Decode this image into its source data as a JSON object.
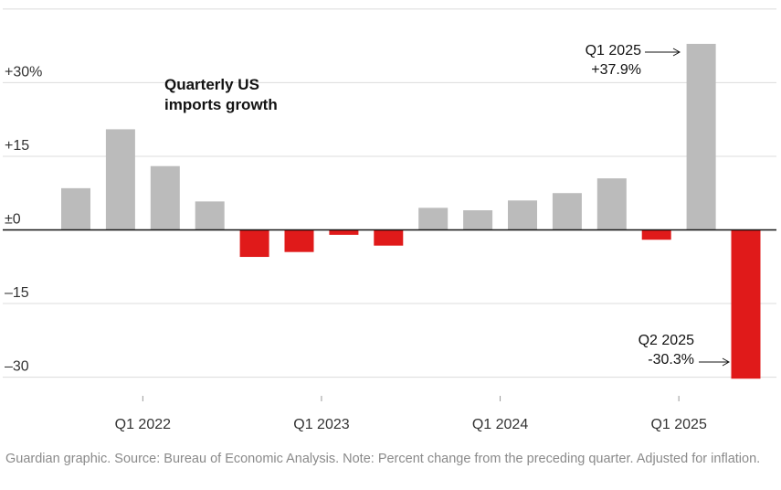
{
  "chart_data": {
    "type": "bar",
    "title": "Quarterly US imports growth",
    "ylim": [
      -30,
      45
    ],
    "grid": true,
    "y_ticks": [
      {
        "value": 30,
        "label": "+30%"
      },
      {
        "value": 15,
        "label": "+15"
      },
      {
        "value": 0,
        "label": "±0"
      },
      {
        "value": -15,
        "label": "–15"
      },
      {
        "value": -30,
        "label": "–30"
      }
    ],
    "x_ticks": [
      {
        "index": 2,
        "label": "Q1 2022"
      },
      {
        "index": 6,
        "label": "Q1 2023"
      },
      {
        "index": 10,
        "label": "Q1 2024"
      },
      {
        "index": 14,
        "label": "Q1 2025"
      }
    ],
    "values": [
      8.5,
      20.5,
      13.0,
      5.8,
      -5.5,
      -4.5,
      -1.0,
      -3.2,
      4.5,
      4.0,
      6.0,
      7.5,
      10.5,
      -2.0,
      37.9,
      -30.3
    ],
    "colors": {
      "positive": "#bbbbbb",
      "negative": "#e01a1a"
    },
    "annotations": [
      {
        "index": 14,
        "lines": [
          "Q1 2025",
          "+37.9%"
        ]
      },
      {
        "index": 15,
        "lines": [
          "Q2 2025",
          "-30.3%"
        ]
      }
    ]
  },
  "footer": "Guardian graphic. Source: Bureau of Economic Analysis. Note: Percent change from the preceding quarter. Adjusted for inflation."
}
